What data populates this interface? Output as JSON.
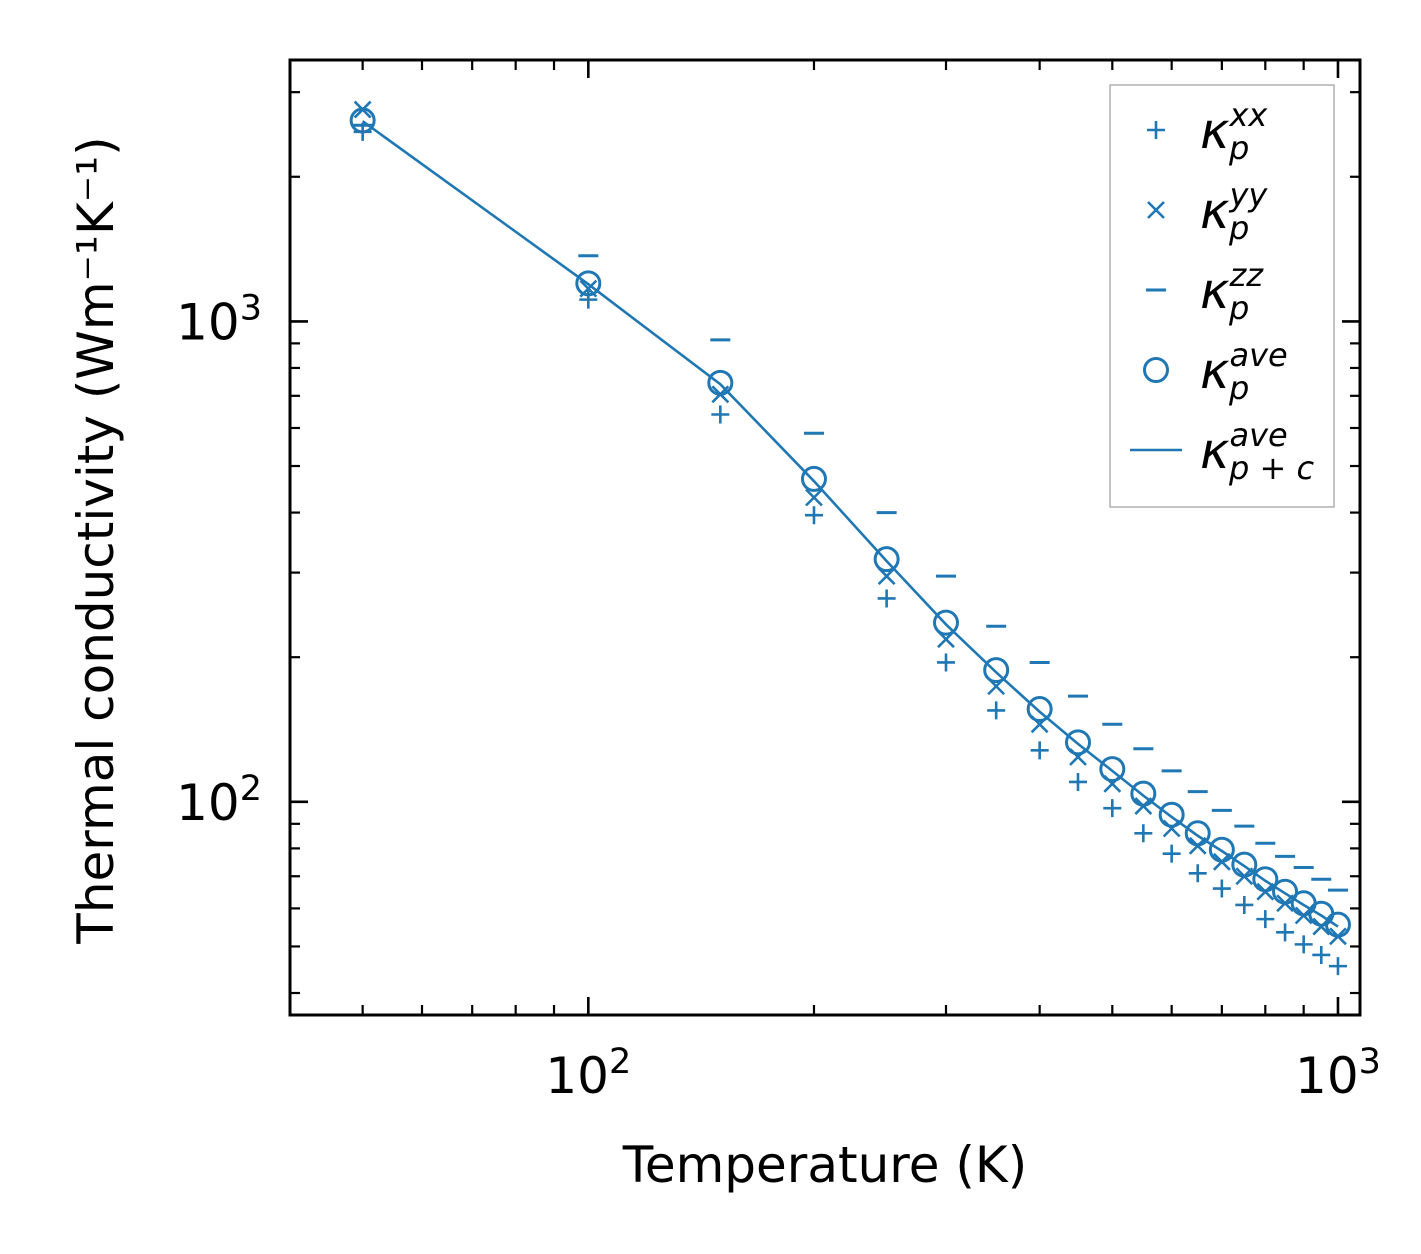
{
  "chart_data": {
    "type": "scatter",
    "title": "",
    "xlabel": "Temperature (K)",
    "ylabel": "Thermal conductivity (Wm⁻¹K⁻¹)",
    "xscale": "log",
    "yscale": "log",
    "xlim": [
      40,
      1070
    ],
    "ylim": [
      36,
      3500
    ],
    "x_major_ticks": [
      {
        "value": 100,
        "base": "10",
        "exp": "2"
      },
      {
        "value": 1000,
        "base": "10",
        "exp": "3"
      }
    ],
    "y_major_ticks": [
      {
        "value": 100,
        "base": "10",
        "exp": "2"
      },
      {
        "value": 1000,
        "base": "10",
        "exp": "3"
      }
    ],
    "color": "#1f77b4",
    "legend_position": "top-right",
    "x": [
      50,
      100,
      150,
      200,
      250,
      300,
      350,
      400,
      450,
      500,
      550,
      600,
      650,
      700,
      750,
      800,
      850,
      900,
      950,
      1000
    ],
    "series": [
      {
        "name": "kappa_p^xx",
        "label_main": "κ",
        "label_sub": "p",
        "label_sup": "xx",
        "marker": "plus",
        "values": [
          2480,
          1110,
          640,
          395,
          265,
          195,
          155,
          128,
          110,
          97,
          86,
          78,
          71,
          66,
          61,
          57,
          53.5,
          50.5,
          48,
          45.5
        ]
      },
      {
        "name": "kappa_p^yy",
        "label_main": "κ",
        "label_sub": "p",
        "label_sup": "yy",
        "marker": "x",
        "values": [
          2760,
          1170,
          705,
          430,
          295,
          218,
          174,
          145,
          124,
          109,
          98,
          88,
          81,
          75,
          70,
          65,
          61.5,
          58,
          55,
          52.5
        ]
      },
      {
        "name": "kappa_p^zz",
        "label_main": "κ",
        "label_sub": "p",
        "label_sup": "zz",
        "marker": "minus",
        "values": [
          2560,
          1370,
          915,
          585,
          400,
          295,
          232,
          195,
          166,
          145,
          129,
          116,
          105,
          96,
          89,
          82,
          77,
          73,
          69,
          65.5
        ]
      },
      {
        "name": "kappa_p^ave",
        "label_main": "κ",
        "label_sub": "p",
        "label_sup": "ave",
        "marker": "circle",
        "values": [
          2620,
          1200,
          745,
          470,
          320,
          236,
          188,
          156,
          133,
          117,
          104,
          94,
          86,
          79.5,
          74,
          69,
          65,
          61.5,
          58.5,
          55.5
        ]
      },
      {
        "name": "kappa_p+c^ave",
        "label_main": "κ",
        "label_sub": "p + c",
        "label_sup": "ave",
        "marker": "line",
        "values": [
          2610,
          1195,
          740,
          465,
          317,
          234,
          186,
          154,
          132,
          116,
          103,
          93,
          85,
          79,
          73.5,
          68.5,
          64.5,
          61,
          58,
          55
        ]
      }
    ]
  }
}
